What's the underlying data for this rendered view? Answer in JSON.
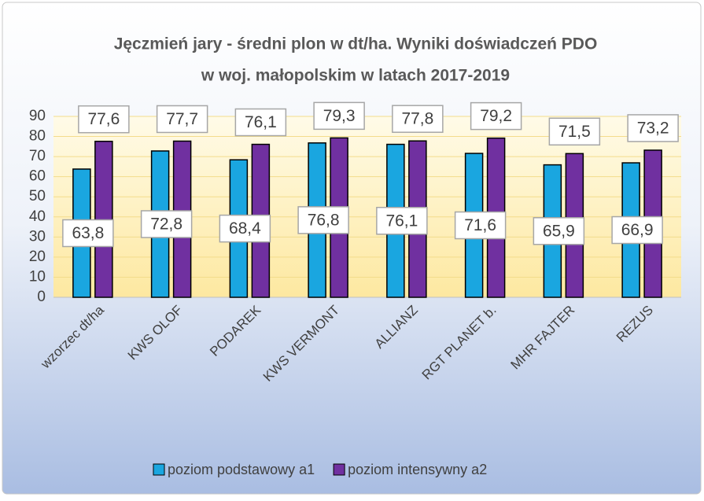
{
  "chart_data": {
    "type": "bar",
    "title": [
      "Jęczmień jary - średni plon w dt/ha. Wyniki doświadczeń PDO",
      "w woj. małopolskim w latach 2017-2019"
    ],
    "categories": [
      "wzorzec dt/ha",
      "KWS OLOF",
      "PODAREK",
      "KWS VERMONT",
      "ALLIANZ",
      "RGT PLANET b.",
      "MHR FAJTER",
      "REZUS"
    ],
    "series": [
      {
        "name": "poziom podstawowy a1",
        "color": "#1aa6e0",
        "values": [
          63.8,
          72.8,
          68.4,
          76.8,
          76.1,
          71.6,
          65.9,
          66.9
        ],
        "value_labels": [
          "63,8",
          "72,8",
          "68,4",
          "76,8",
          "76,1",
          "71,6",
          "65,9",
          "66,9"
        ]
      },
      {
        "name": "poziom intensywny a2",
        "color": "#7030a0",
        "values": [
          77.6,
          77.7,
          76.1,
          79.3,
          77.8,
          79.2,
          71.5,
          73.2
        ],
        "value_labels": [
          "77,6",
          "77,7",
          "76,1",
          "79,3",
          "77,8",
          "79,2",
          "71,5",
          "73,2"
        ]
      }
    ],
    "ylim": [
      0,
      90
    ],
    "yticks": [
      0,
      10,
      20,
      30,
      40,
      50,
      60,
      70,
      80,
      90
    ],
    "grid": true,
    "legend": "bottom"
  }
}
